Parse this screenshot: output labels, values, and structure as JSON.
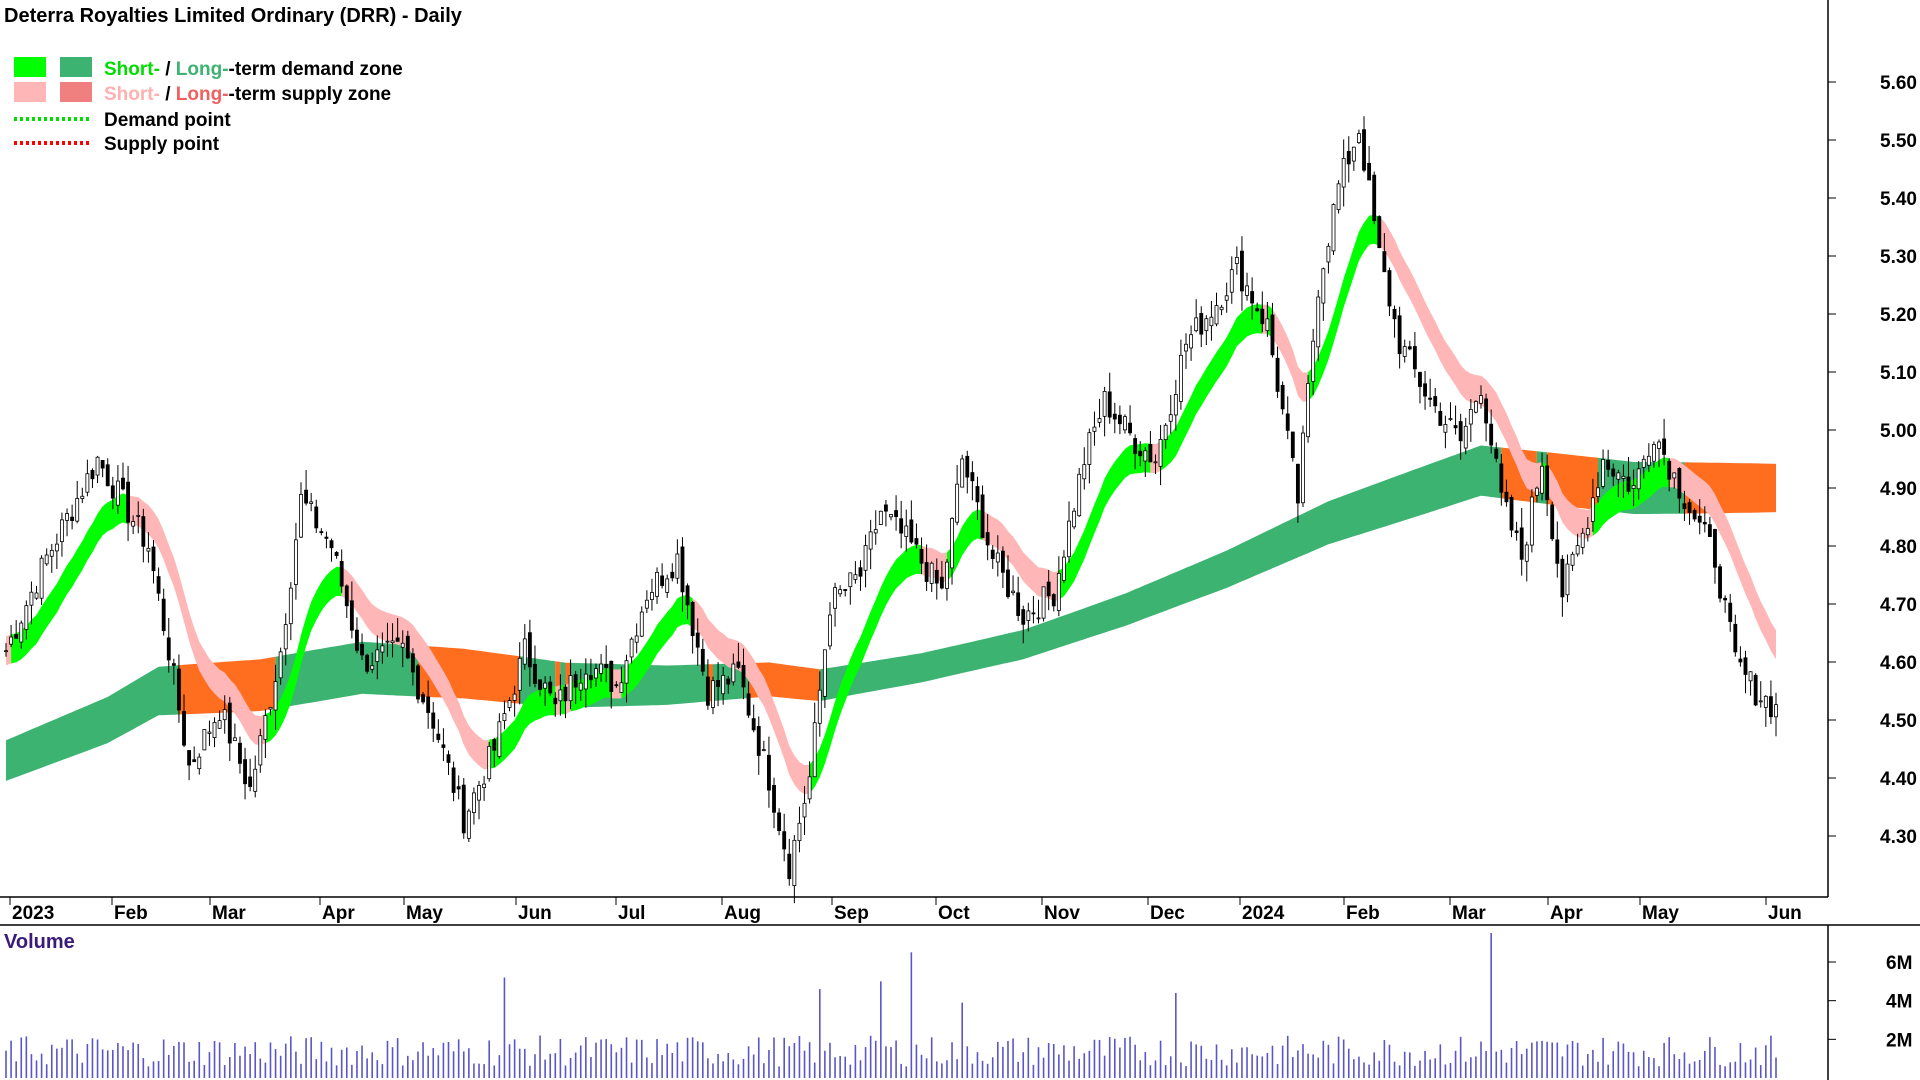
{
  "chart_data": {
    "type": "candlestick",
    "title": "Deterra Royalties Limited Ordinary (DRR) - Daily",
    "price_axis": {
      "ylim": [
        4.2,
        5.62
      ],
      "ticks": [
        "5.60",
        "5.50",
        "5.40",
        "5.30",
        "5.20",
        "5.10",
        "5.00",
        "4.90",
        "4.80",
        "4.70",
        "4.60",
        "4.50",
        "4.40",
        "4.30"
      ]
    },
    "months": [
      "2023",
      "Feb",
      "Mar",
      "Apr",
      "May",
      "Jun",
      "Jul",
      "Aug",
      "Sep",
      "Oct",
      "Nov",
      "Dec",
      "2024",
      "Feb",
      "Mar",
      "Apr",
      "May",
      "Jun"
    ],
    "legend": {
      "short": "Short-",
      "slash": " / ",
      "long": "Long-",
      "demand_rest": "-term demand zone",
      "supply_rest": "-term supply zone",
      "demand_point": "Demand point",
      "supply_point": "Supply point"
    },
    "colors": {
      "short_demand": "#00ff00",
      "long_demand": "#3cb371",
      "short_supply": "#ffb6b6",
      "long_supply": "#ff6d1f",
      "demand_point": "#00dd00",
      "supply_point": "#ff0000",
      "volume": "#5a56c8"
    },
    "close_anchors": [
      [
        0,
        4.62
      ],
      [
        8,
        4.78
      ],
      [
        18,
        4.95
      ],
      [
        28,
        4.8
      ],
      [
        32,
        4.62
      ],
      [
        36,
        4.42
      ],
      [
        42,
        4.52
      ],
      [
        48,
        4.38
      ],
      [
        54,
        4.62
      ],
      [
        58,
        4.88
      ],
      [
        64,
        4.8
      ],
      [
        70,
        4.6
      ],
      [
        78,
        4.62
      ],
      [
        84,
        4.5
      ],
      [
        90,
        4.33
      ],
      [
        96,
        4.45
      ],
      [
        102,
        4.62
      ],
      [
        108,
        4.52
      ],
      [
        114,
        4.6
      ],
      [
        120,
        4.56
      ],
      [
        126,
        4.72
      ],
      [
        132,
        4.78
      ],
      [
        138,
        4.55
      ],
      [
        144,
        4.58
      ],
      [
        150,
        4.4
      ],
      [
        154,
        4.25
      ],
      [
        158,
        4.4
      ],
      [
        162,
        4.7
      ],
      [
        168,
        4.75
      ],
      [
        172,
        4.86
      ],
      [
        178,
        4.8
      ],
      [
        184,
        4.72
      ],
      [
        188,
        4.95
      ],
      [
        194,
        4.78
      ],
      [
        200,
        4.68
      ],
      [
        206,
        4.72
      ],
      [
        212,
        4.95
      ],
      [
        216,
        5.05
      ],
      [
        222,
        4.98
      ],
      [
        226,
        4.95
      ],
      [
        232,
        5.15
      ],
      [
        238,
        5.22
      ],
      [
        242,
        5.28
      ],
      [
        248,
        5.18
      ],
      [
        252,
        4.98
      ],
      [
        254,
        4.88
      ],
      [
        258,
        5.25
      ],
      [
        262,
        5.42
      ],
      [
        266,
        5.52
      ],
      [
        270,
        5.3
      ],
      [
        274,
        5.15
      ],
      [
        280,
        5.05
      ],
      [
        286,
        4.98
      ],
      [
        290,
        5.08
      ],
      [
        294,
        4.88
      ],
      [
        298,
        4.78
      ],
      [
        302,
        4.95
      ],
      [
        306,
        4.72
      ],
      [
        310,
        4.82
      ],
      [
        314,
        4.95
      ],
      [
        320,
        4.9
      ],
      [
        324,
        5.0
      ],
      [
        328,
        4.92
      ],
      [
        332,
        4.85
      ],
      [
        336,
        4.78
      ],
      [
        340,
        4.6
      ],
      [
        344,
        4.55
      ],
      [
        348,
        4.52
      ]
    ],
    "long_demand_anchors": [
      [
        0,
        4.43
      ],
      [
        20,
        4.5
      ],
      [
        30,
        4.55
      ],
      [
        50,
        4.56
      ],
      [
        70,
        4.59
      ],
      [
        90,
        4.58
      ],
      [
        110,
        4.56
      ],
      [
        130,
        4.56
      ],
      [
        150,
        4.57
      ],
      [
        160,
        4.56
      ],
      [
        180,
        4.59
      ],
      [
        200,
        4.63
      ],
      [
        220,
        4.69
      ],
      [
        240,
        4.76
      ],
      [
        260,
        4.84
      ],
      [
        280,
        4.9
      ],
      [
        290,
        4.93
      ],
      [
        300,
        4.92
      ],
      [
        320,
        4.9
      ],
      [
        340,
        4.9
      ],
      [
        348,
        4.9
      ]
    ],
    "volume_axis": {
      "ylim": [
        0,
        7
      ],
      "unit": "M",
      "ticks": [
        "6M",
        "4M",
        "2M"
      ],
      "label": "Volume"
    },
    "bars_count": 349,
    "volume_spikes": [
      [
        98,
        5.2
      ],
      [
        160,
        4.6
      ],
      [
        172,
        5.0
      ],
      [
        178,
        6.5
      ],
      [
        188,
        3.9
      ],
      [
        230,
        4.4
      ],
      [
        292,
        7.5
      ]
    ]
  }
}
